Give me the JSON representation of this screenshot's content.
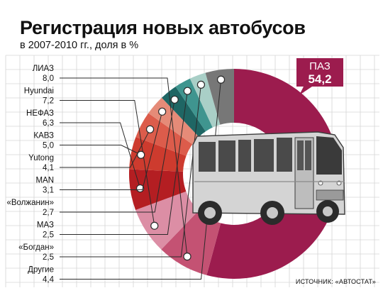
{
  "chart_data": {
    "type": "pie",
    "title": "Регистрация новых автобусов",
    "subtitle": "в 2007-2010 гг., доля в %",
    "categories": [
      "ПАЗ",
      "ЛИАЗ",
      "Hyundai",
      "НЕФАЗ",
      "КАВЗ",
      "Yutong",
      "MAN",
      "«Волжанин»",
      "МАЗ",
      "«Богдан»",
      "Другие"
    ],
    "value_labels": [
      "54,2",
      "8,0",
      "7,2",
      "6,3",
      "5,0",
      "4,1",
      "3,1",
      "2,7",
      "2,5",
      "2,5",
      "4,4"
    ],
    "values": [
      54.2,
      8.0,
      7.2,
      6.3,
      5.0,
      4.1,
      3.1,
      2.7,
      2.5,
      2.5,
      4.4
    ],
    "colors": [
      "#9c1c4e",
      "#c45273",
      "#dc8ea5",
      "#b41e22",
      "#cd3b2e",
      "#dc5c4b",
      "#e58b78",
      "#1f6664",
      "#3f958f",
      "#a9cfc7",
      "#777777"
    ],
    "donut": true,
    "grid": true,
    "source": "ИСТОЧНИК: «АВТОСТАТ»"
  }
}
